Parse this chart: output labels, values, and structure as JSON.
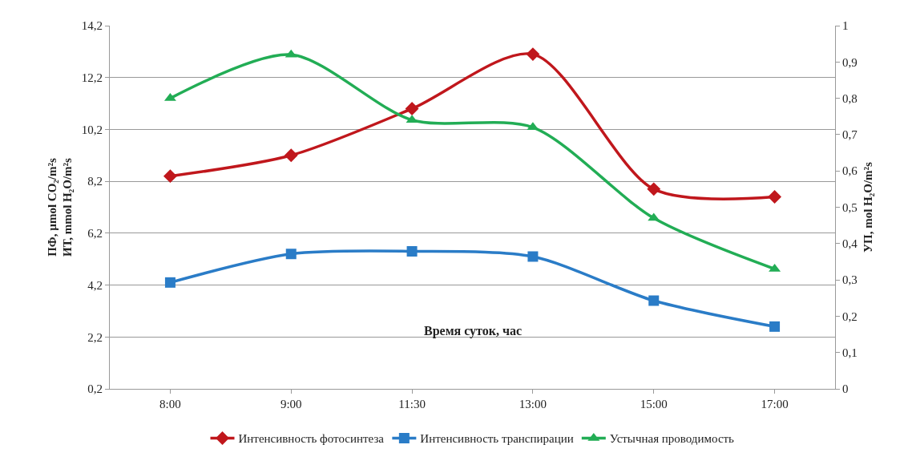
{
  "chart_data": {
    "type": "line",
    "xlabel": "Время суток, час",
    "ylabel": "ПФ, µmol CO₂/m²s\nИТ, mmol H₂O/m²s",
    "y2label": "УП, mol H₂O/m²s",
    "categories": [
      "8:00",
      "9:00",
      "11:30",
      "13:00",
      "15:00",
      "17:00"
    ],
    "series": [
      {
        "name": "Интенсивность фотосинтеза",
        "color": "#c0171c",
        "marker": "diamond",
        "values": [
          8.4,
          9.2,
          11.0,
          13.1,
          7.9,
          7.6
        ]
      },
      {
        "name": "Интенсивность транспирации",
        "color": "#2a7cc7",
        "marker": "square",
        "values": [
          4.3,
          5.4,
          5.5,
          5.3,
          3.6,
          2.6
        ]
      },
      {
        "name": "Устычная проводимость",
        "color": "#22ad55",
        "marker": "triangle",
        "axis": "y2",
        "values": [
          0.8,
          0.92,
          0.74,
          0.72,
          0.47,
          0.33
        ]
      }
    ],
    "ylim": [
      0.2,
      14.2
    ],
    "yticks": [
      {
        "value": 0.2,
        "label": "0,2"
      },
      {
        "value": 2.2,
        "label": "2,2"
      },
      {
        "value": 4.2,
        "label": "4,2"
      },
      {
        "value": 6.2,
        "label": "6,2"
      },
      {
        "value": 8.2,
        "label": "8,2"
      },
      {
        "value": 10.2,
        "label": "10,2"
      },
      {
        "value": 12.2,
        "label": "12,2"
      },
      {
        "value": 14.2,
        "label": "14,2"
      }
    ],
    "y2lim": [
      0,
      1
    ],
    "y2ticks": [
      0,
      {
        "value": 0.1,
        "label": "0,1"
      },
      {
        "value": 0.2,
        "label": "0,2"
      },
      {
        "value": 0.3,
        "label": "0,3"
      },
      {
        "value": 0.4,
        "label": "0,4"
      },
      {
        "value": 0.5,
        "label": "0,5"
      },
      {
        "value": 0.6,
        "label": "0,6"
      },
      {
        "value": 0.7,
        "label": "0,7"
      },
      {
        "value": 0.8,
        "label": "0,8"
      },
      {
        "value": 0.9,
        "label": "0,9"
      },
      1
    ],
    "grid": "y",
    "legend": "bottom",
    "line_style": "solid"
  }
}
